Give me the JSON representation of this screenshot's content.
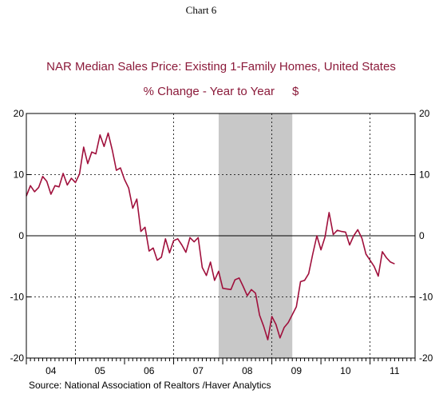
{
  "chart_data": {
    "type": "line",
    "header": "Chart 6",
    "title": "NAR Median Sales Price: Existing 1-Family Homes, United States",
    "subtitle": "% Change - Year to Year",
    "units": "$",
    "source": "Source:  National Association of Realtors /Haver Analytics",
    "x_tick_labels": [
      "04",
      "05",
      "06",
      "07",
      "08",
      "09",
      "10",
      "11"
    ],
    "y_ticks": [
      -20,
      -10,
      0,
      10,
      20
    ],
    "ylim": [
      -20,
      20
    ],
    "xlim": [
      2004.0,
      2011.9167
    ],
    "grid": true,
    "recession_shading": [
      2007.9167,
      2009.4167
    ],
    "series": [
      {
        "color": "#a0103c",
        "x": [
          2004.0,
          2004.0833,
          2004.1667,
          2004.25,
          2004.3333,
          2004.4167,
          2004.5,
          2004.5833,
          2004.6667,
          2004.75,
          2004.8333,
          2004.9167,
          2005.0,
          2005.0833,
          2005.1667,
          2005.25,
          2005.3333,
          2005.4167,
          2005.5,
          2005.5833,
          2005.6667,
          2005.75,
          2005.8333,
          2005.9167,
          2006.0,
          2006.0833,
          2006.1667,
          2006.25,
          2006.3333,
          2006.4167,
          2006.5,
          2006.5833,
          2006.6667,
          2006.75,
          2006.8333,
          2006.9167,
          2007.0,
          2007.0833,
          2007.1667,
          2007.25,
          2007.3333,
          2007.4167,
          2007.5,
          2007.5833,
          2007.6667,
          2007.75,
          2007.8333,
          2007.9167,
          2008.0,
          2008.0833,
          2008.1667,
          2008.25,
          2008.3333,
          2008.4167,
          2008.5,
          2008.5833,
          2008.6667,
          2008.75,
          2008.8333,
          2008.9167,
          2009.0,
          2009.0833,
          2009.1667,
          2009.25,
          2009.3333,
          2009.4167,
          2009.5,
          2009.5833,
          2009.6667,
          2009.75,
          2009.8333,
          2009.9167,
          2010.0,
          2010.0833,
          2010.1667,
          2010.25,
          2010.3333,
          2010.4167,
          2010.5,
          2010.5833,
          2010.6667,
          2010.75,
          2010.8333,
          2010.9167,
          2011.0,
          2011.0833,
          2011.1667,
          2011.25,
          2011.3333,
          2011.4167,
          2011.5
        ],
        "y": [
          6.5,
          8.2,
          7.2,
          7.9,
          9.7,
          8.9,
          6.8,
          8.2,
          8.0,
          10.2,
          8.3,
          9.4,
          8.7,
          10.1,
          14.5,
          11.8,
          13.7,
          13.4,
          16.5,
          14.6,
          16.8,
          14.0,
          10.7,
          11.1,
          9.2,
          7.8,
          4.5,
          6.0,
          0.7,
          1.4,
          -2.5,
          -2.0,
          -4.0,
          -3.5,
          -0.5,
          -2.8,
          -0.8,
          -0.5,
          -1.5,
          -2.7,
          -0.3,
          -1.0,
          -0.3,
          -5.2,
          -6.5,
          -4.3,
          -7.3,
          -5.8,
          -8.6,
          -8.7,
          -8.8,
          -7.2,
          -6.9,
          -8.3,
          -9.8,
          -8.8,
          -9.4,
          -13.0,
          -14.8,
          -17.0,
          -13.2,
          -14.5,
          -16.7,
          -15.0,
          -14.2,
          -12.9,
          -11.6,
          -7.5,
          -7.3,
          -6.2,
          -3.0,
          0.0,
          -2.3,
          -0.2,
          3.8,
          0.2,
          0.9,
          0.7,
          0.6,
          -1.5,
          0.0,
          1.0,
          -0.4,
          -3.0,
          -4.0,
          -5.0,
          -6.6,
          -2.6,
          -3.6,
          -4.3,
          -4.6
        ]
      }
    ]
  }
}
